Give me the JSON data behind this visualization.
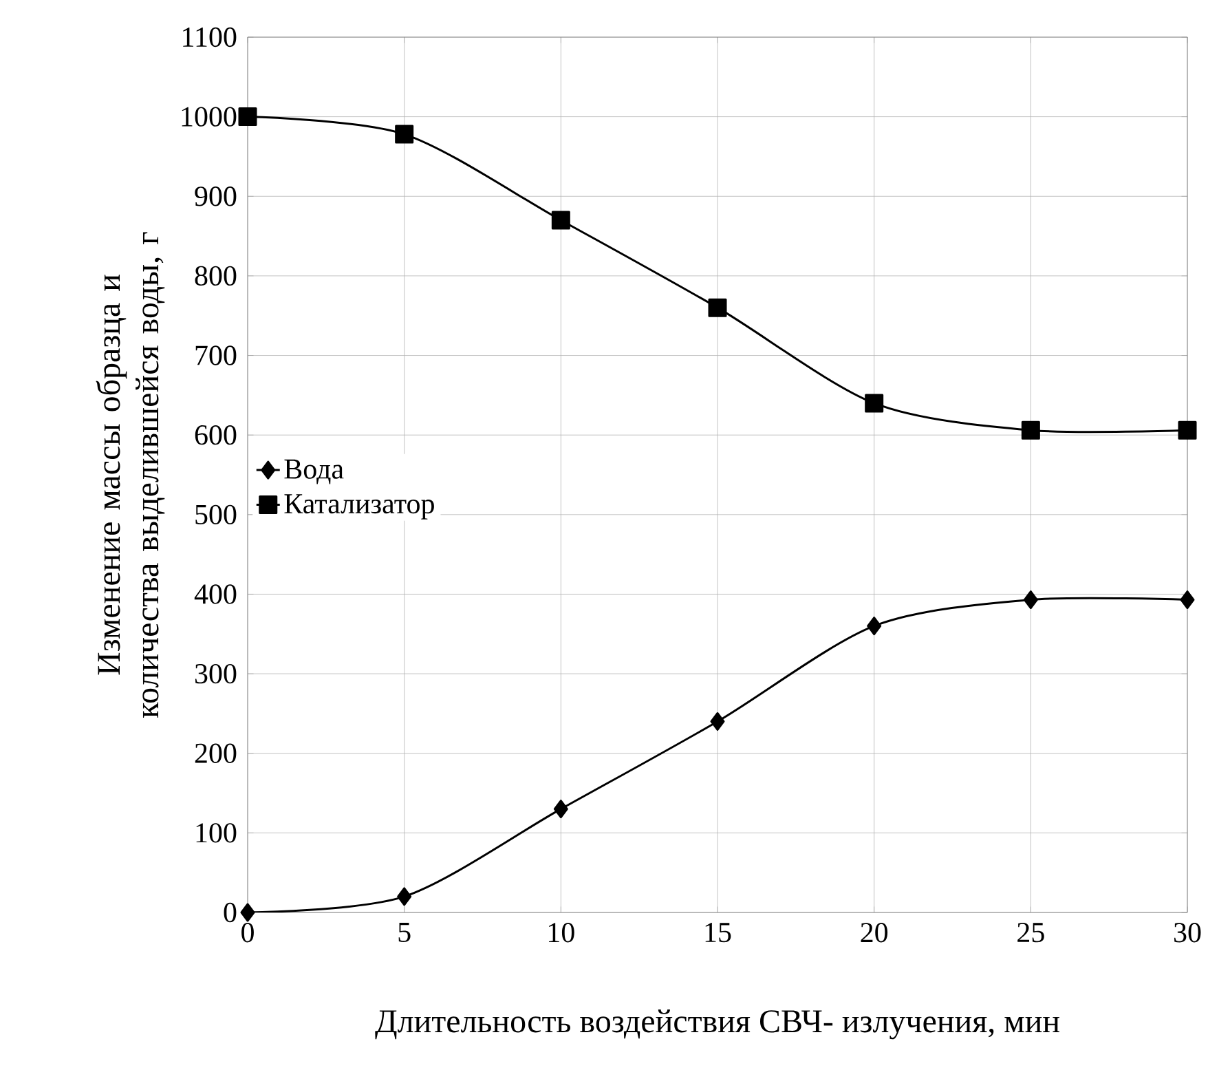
{
  "chart_data": {
    "type": "line",
    "xlabel": "Длительность воздействия СВЧ- излучения, мин",
    "ylabel": "Изменение массы образца  и количества выделившейся воды, г",
    "x": [
      0,
      5,
      10,
      15,
      20,
      25,
      30
    ],
    "series": [
      {
        "name": "Вода",
        "color": "#000000",
        "marker": "diamond",
        "values": [
          0,
          20,
          130,
          240,
          360,
          393,
          393
        ]
      },
      {
        "name": "Катализатор",
        "color": "#000000",
        "marker": "square",
        "values": [
          1000,
          978,
          870,
          760,
          640,
          606,
          606
        ]
      }
    ],
    "xlim": [
      0,
      30
    ],
    "xticks": [
      0,
      5,
      10,
      15,
      20,
      25,
      30
    ],
    "ylim": [
      0,
      1100
    ],
    "yticks": [
      0,
      100,
      200,
      300,
      400,
      500,
      600,
      700,
      800,
      900,
      1000,
      1100
    ],
    "grid": true,
    "legend": "left",
    "line_style": "solid"
  }
}
